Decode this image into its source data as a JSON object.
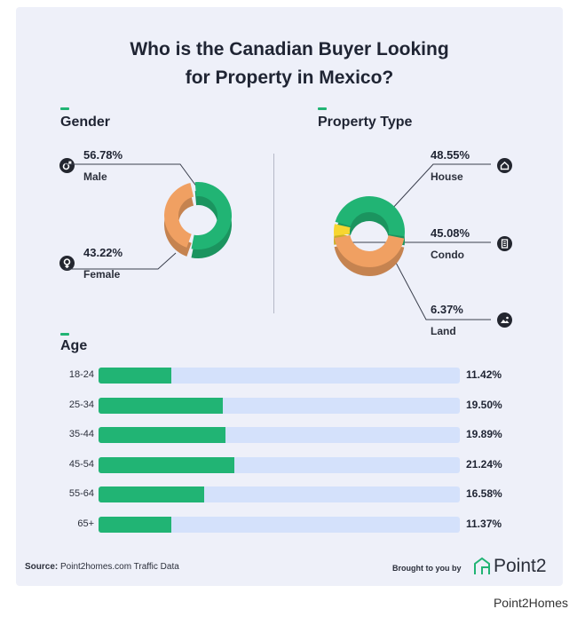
{
  "title_line1": "Who is the Canadian Buyer Looking",
  "title_line2": "for Property in Mexico?",
  "colors": {
    "green": "#21b474",
    "orange": "#f0a062",
    "yellow": "#f7d630",
    "track": "#d4e1fb",
    "text": "#1f2433"
  },
  "chart_data": [
    {
      "type": "pie",
      "title": "Gender",
      "categories": [
        "Male",
        "Female"
      ],
      "values": [
        56.78,
        43.22
      ],
      "value_labels": [
        "56.78%",
        "43.22%"
      ],
      "icons": [
        "male-icon",
        "female-icon"
      ]
    },
    {
      "type": "pie",
      "title": "Property Type",
      "categories": [
        "House",
        "Condo",
        "Land"
      ],
      "values": [
        48.55,
        45.08,
        6.37
      ],
      "value_labels": [
        "48.55%",
        "45.08%",
        "6.37%"
      ],
      "icons": [
        "house-icon",
        "condo-icon",
        "land-icon"
      ]
    },
    {
      "type": "bar",
      "title": "Age",
      "categories": [
        "18-24",
        "25-34",
        "35-44",
        "45-54",
        "55-64",
        "65+"
      ],
      "values": [
        11.42,
        19.5,
        19.89,
        21.24,
        16.58,
        11.37
      ],
      "value_labels": [
        "11.42%",
        "19.50%",
        "19.89%",
        "21.24%",
        "16.58%",
        "11.37%"
      ],
      "ylim": [
        0,
        100
      ]
    }
  ],
  "source_label": "Source:",
  "source_text": "Point2homes.com Traffic Data",
  "brought_text": "Brought to you by",
  "brand": "Point2",
  "footer": "Point2Homes"
}
